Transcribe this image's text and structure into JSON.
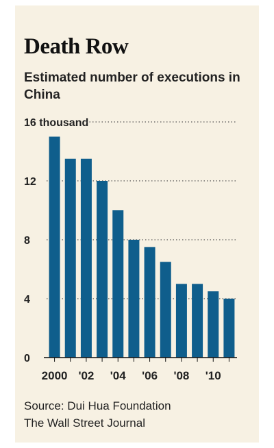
{
  "title": "Death Row",
  "subtitle": "Estimated number of executions in China",
  "chart_data": {
    "type": "bar",
    "title": "Death Row",
    "subtitle": "Estimated number of executions in China",
    "x": [
      2000,
      2001,
      2002,
      2003,
      2004,
      2005,
      2006,
      2007,
      2008,
      2009,
      2010,
      2011
    ],
    "values": [
      15,
      13.5,
      13.5,
      12,
      10,
      8,
      7.5,
      6.5,
      5,
      5,
      4.5,
      4
    ],
    "ylim": [
      0,
      16
    ],
    "y_ticks": [
      {
        "value": 0,
        "label": "0"
      },
      {
        "value": 4,
        "label": "4"
      },
      {
        "value": 8,
        "label": "8"
      },
      {
        "value": 12,
        "label": "12"
      },
      {
        "value": 16,
        "label": "16 thousand"
      }
    ],
    "x_ticks": [
      {
        "value": 2000,
        "label": "2000"
      },
      {
        "value": 2002,
        "label": "'02"
      },
      {
        "value": 2004,
        "label": "'04"
      },
      {
        "value": 2006,
        "label": "'06"
      },
      {
        "value": 2008,
        "label": "'08"
      },
      {
        "value": 2010,
        "label": "'10"
      }
    ],
    "ylabel": "",
    "xlabel": "",
    "grid": "horizontal dotted",
    "bar_color": "#0f5e8c"
  },
  "source": {
    "line1": "Source: Dui Hua Foundation",
    "line2": "The Wall Street Journal"
  }
}
